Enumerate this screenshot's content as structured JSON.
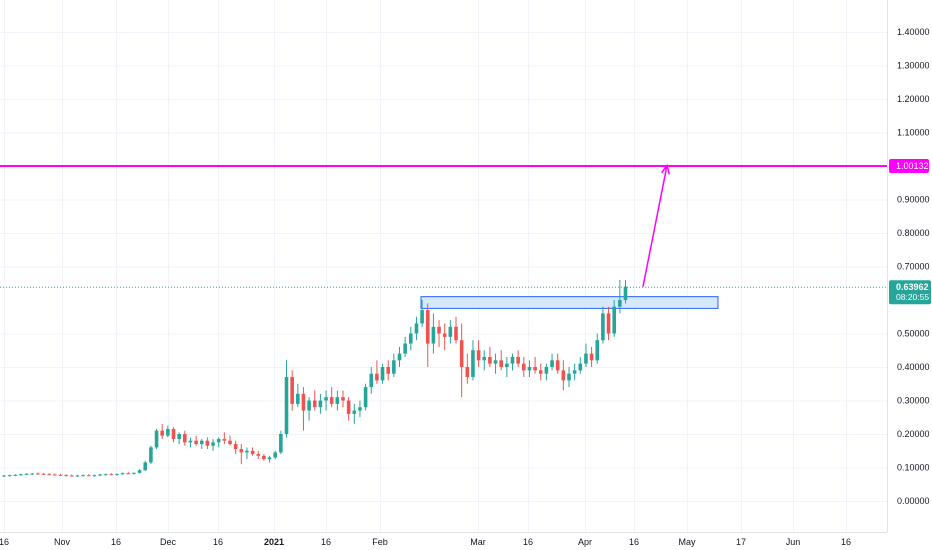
{
  "colors": {
    "up": "#26a69a",
    "down": "#ef5350",
    "grid": "#f0f3fa",
    "target_line": "#ff00ff",
    "zone_fill": "#cfe5fb",
    "zone_border": "#2962ff",
    "price_line": "#26a69a",
    "axis_text": "#131722"
  },
  "chart_data": {
    "type": "candlestick",
    "y_scale": "linear",
    "ylim": [
      -0.1,
      1.45
    ],
    "grid": true,
    "y_ticks": [
      "1.40000",
      "1.30000",
      "1.20000",
      "1.10000",
      "0.90000",
      "0.80000",
      "0.70000",
      "0.50000",
      "0.40000",
      "0.30000",
      "0.20000",
      "0.10000",
      "0.00000"
    ],
    "x_ticks": [
      {
        "label": "16",
        "bold": false
      },
      {
        "label": "Nov",
        "bold": false
      },
      {
        "label": "16",
        "bold": false
      },
      {
        "label": "Dec",
        "bold": false
      },
      {
        "label": "16",
        "bold": false
      },
      {
        "label": "2021",
        "bold": true
      },
      {
        "label": "16",
        "bold": false
      },
      {
        "label": "Feb",
        "bold": false
      },
      {
        "label": "Mar",
        "bold": false
      },
      {
        "label": "16",
        "bold": false
      },
      {
        "label": "Apr",
        "bold": false
      },
      {
        "label": "16",
        "bold": false
      },
      {
        "label": "May",
        "bold": false
      },
      {
        "label": "17",
        "bold": false
      },
      {
        "label": "Jun",
        "bold": false
      },
      {
        "label": "16",
        "bold": false
      }
    ],
    "target_level": {
      "value": 1.00132,
      "label": "1.00132"
    },
    "last_price": {
      "value": 0.63962,
      "label": "0.63962",
      "countdown": "08:20:55"
    },
    "resistance_zone": {
      "low": 0.575,
      "high": 0.61,
      "date_start": "2021-02-13",
      "date_end": "2021-05-10"
    },
    "projection_arrow": {
      "from": {
        "date": "2021-04-17",
        "value": 0.64
      },
      "to": {
        "date": "2021-04-26",
        "value": 1.00132
      }
    },
    "series": [
      {
        "ohlc": [
          [
            0.075,
            0.078,
            0.072,
            0.076
          ],
          [
            0.076,
            0.079,
            0.073,
            0.077
          ],
          [
            0.077,
            0.08,
            0.074,
            0.078
          ],
          [
            0.078,
            0.082,
            0.075,
            0.08
          ],
          [
            0.08,
            0.083,
            0.077,
            0.081
          ],
          [
            0.081,
            0.084,
            0.078,
            0.082
          ],
          [
            0.082,
            0.085,
            0.079,
            0.081
          ],
          [
            0.081,
            0.084,
            0.078,
            0.08
          ],
          [
            0.08,
            0.083,
            0.077,
            0.079
          ],
          [
            0.079,
            0.082,
            0.076,
            0.078
          ],
          [
            0.078,
            0.081,
            0.075,
            0.077
          ],
          [
            0.077,
            0.08,
            0.074,
            0.076
          ],
          [
            0.076,
            0.079,
            0.073,
            0.075
          ],
          [
            0.075,
            0.078,
            0.072,
            0.076
          ],
          [
            0.076,
            0.079,
            0.073,
            0.077
          ],
          [
            0.077,
            0.08,
            0.074,
            0.076
          ],
          [
            0.076,
            0.079,
            0.073,
            0.077
          ],
          [
            0.077,
            0.081,
            0.074,
            0.079
          ],
          [
            0.079,
            0.082,
            0.076,
            0.08
          ],
          [
            0.08,
            0.083,
            0.077,
            0.079
          ],
          [
            0.079,
            0.082,
            0.076,
            0.081
          ],
          [
            0.081,
            0.085,
            0.078,
            0.083
          ],
          [
            0.083,
            0.086,
            0.08,
            0.082
          ],
          [
            0.082,
            0.085,
            0.079,
            0.084
          ],
          [
            0.084,
            0.095,
            0.082,
            0.092
          ],
          [
            0.092,
            0.12,
            0.09,
            0.115
          ],
          [
            0.115,
            0.165,
            0.11,
            0.16
          ],
          [
            0.16,
            0.215,
            0.155,
            0.21
          ],
          [
            0.21,
            0.23,
            0.185,
            0.195
          ],
          [
            0.195,
            0.225,
            0.19,
            0.215
          ],
          [
            0.215,
            0.22,
            0.175,
            0.185
          ],
          [
            0.185,
            0.205,
            0.17,
            0.2
          ],
          [
            0.2,
            0.21,
            0.165,
            0.175
          ],
          [
            0.175,
            0.19,
            0.16,
            0.18
          ],
          [
            0.18,
            0.195,
            0.165,
            0.17
          ],
          [
            0.17,
            0.185,
            0.155,
            0.18
          ],
          [
            0.18,
            0.19,
            0.155,
            0.165
          ],
          [
            0.165,
            0.185,
            0.15,
            0.175
          ],
          [
            0.175,
            0.19,
            0.16,
            0.185
          ],
          [
            0.185,
            0.205,
            0.17,
            0.18
          ],
          [
            0.18,
            0.195,
            0.165,
            0.17
          ],
          [
            0.17,
            0.18,
            0.14,
            0.155
          ],
          [
            0.155,
            0.17,
            0.11,
            0.145
          ],
          [
            0.145,
            0.16,
            0.125,
            0.15
          ],
          [
            0.15,
            0.16,
            0.135,
            0.14
          ],
          [
            0.14,
            0.15,
            0.125,
            0.135
          ],
          [
            0.135,
            0.14,
            0.12,
            0.125
          ],
          [
            0.125,
            0.135,
            0.115,
            0.13
          ],
          [
            0.13,
            0.15,
            0.125,
            0.145
          ],
          [
            0.145,
            0.21,
            0.14,
            0.2
          ],
          [
            0.2,
            0.42,
            0.19,
            0.37
          ],
          [
            0.37,
            0.39,
            0.27,
            0.29
          ],
          [
            0.29,
            0.35,
            0.28,
            0.32
          ],
          [
            0.32,
            0.34,
            0.21,
            0.27
          ],
          [
            0.27,
            0.31,
            0.24,
            0.3
          ],
          [
            0.3,
            0.33,
            0.27,
            0.28
          ],
          [
            0.28,
            0.32,
            0.26,
            0.3
          ],
          [
            0.3,
            0.33,
            0.27,
            0.31
          ],
          [
            0.31,
            0.34,
            0.28,
            0.29
          ],
          [
            0.29,
            0.33,
            0.27,
            0.31
          ],
          [
            0.31,
            0.33,
            0.28,
            0.3
          ],
          [
            0.3,
            0.31,
            0.24,
            0.26
          ],
          [
            0.26,
            0.29,
            0.23,
            0.27
          ],
          [
            0.27,
            0.3,
            0.25,
            0.28
          ],
          [
            0.28,
            0.35,
            0.27,
            0.34
          ],
          [
            0.34,
            0.4,
            0.32,
            0.38
          ],
          [
            0.38,
            0.42,
            0.35,
            0.36
          ],
          [
            0.36,
            0.41,
            0.35,
            0.4
          ],
          [
            0.4,
            0.42,
            0.36,
            0.38
          ],
          [
            0.38,
            0.44,
            0.37,
            0.42
          ],
          [
            0.42,
            0.46,
            0.4,
            0.44
          ],
          [
            0.44,
            0.49,
            0.43,
            0.47
          ],
          [
            0.47,
            0.52,
            0.45,
            0.5
          ],
          [
            0.5,
            0.55,
            0.48,
            0.53
          ],
          [
            0.53,
            0.6,
            0.52,
            0.57
          ],
          [
            0.57,
            0.59,
            0.4,
            0.47
          ],
          [
            0.47,
            0.56,
            0.44,
            0.52
          ],
          [
            0.52,
            0.54,
            0.46,
            0.5
          ],
          [
            0.5,
            0.53,
            0.45,
            0.49
          ],
          [
            0.49,
            0.54,
            0.47,
            0.52
          ],
          [
            0.52,
            0.55,
            0.47,
            0.48
          ],
          [
            0.48,
            0.53,
            0.31,
            0.4
          ],
          [
            0.4,
            0.44,
            0.35,
            0.37
          ],
          [
            0.37,
            0.48,
            0.36,
            0.45
          ],
          [
            0.45,
            0.48,
            0.4,
            0.42
          ],
          [
            0.42,
            0.45,
            0.39,
            0.43
          ],
          [
            0.43,
            0.46,
            0.4,
            0.41
          ],
          [
            0.41,
            0.44,
            0.38,
            0.42
          ],
          [
            0.42,
            0.45,
            0.39,
            0.4
          ],
          [
            0.4,
            0.43,
            0.37,
            0.41
          ],
          [
            0.41,
            0.44,
            0.39,
            0.43
          ],
          [
            0.43,
            0.45,
            0.4,
            0.41
          ],
          [
            0.41,
            0.43,
            0.37,
            0.39
          ],
          [
            0.39,
            0.42,
            0.37,
            0.4
          ],
          [
            0.4,
            0.43,
            0.38,
            0.39
          ],
          [
            0.39,
            0.41,
            0.36,
            0.38
          ],
          [
            0.38,
            0.41,
            0.36,
            0.4
          ],
          [
            0.4,
            0.44,
            0.39,
            0.42
          ],
          [
            0.42,
            0.44,
            0.38,
            0.39
          ],
          [
            0.39,
            0.42,
            0.33,
            0.36
          ],
          [
            0.36,
            0.4,
            0.34,
            0.38
          ],
          [
            0.38,
            0.41,
            0.36,
            0.39
          ],
          [
            0.39,
            0.43,
            0.38,
            0.41
          ],
          [
            0.41,
            0.47,
            0.4,
            0.44
          ],
          [
            0.44,
            0.46,
            0.4,
            0.42
          ],
          [
            0.42,
            0.5,
            0.41,
            0.48
          ],
          [
            0.48,
            0.58,
            0.47,
            0.56
          ],
          [
            0.56,
            0.58,
            0.48,
            0.5
          ],
          [
            0.5,
            0.6,
            0.49,
            0.58
          ],
          [
            0.58,
            0.66,
            0.56,
            0.6
          ],
          [
            0.6,
            0.66,
            0.59,
            0.64
          ]
        ]
      }
    ]
  }
}
